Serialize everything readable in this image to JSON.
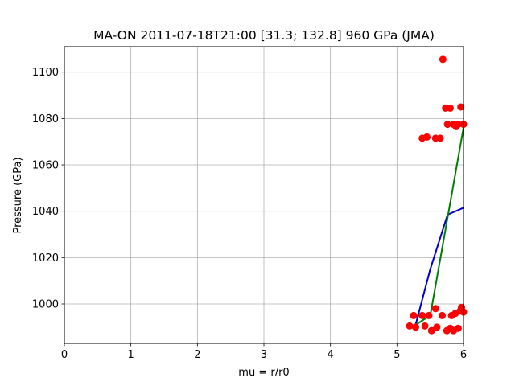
{
  "chart_data": {
    "type": "scatter",
    "title": "MA-ON 2011-07-18T21:00 [31.3; 132.8] 960 GPa (JMA)",
    "xlabel": "mu = r/r0",
    "ylabel": "Pressure (GPa)",
    "xlim": [
      0,
      6
    ],
    "ylim": [
      983,
      1111
    ],
    "xticks": [
      0,
      1,
      2,
      3,
      4,
      5,
      6
    ],
    "yticks": [
      1000,
      1020,
      1040,
      1060,
      1080,
      1100
    ],
    "grid": true,
    "colors": {
      "points": "#ff0000",
      "blue_line": "#0000cc",
      "green_line": "#008000"
    },
    "points": [
      {
        "x": 5.19,
        "y": 990.5
      },
      {
        "x": 5.25,
        "y": 995.0
      },
      {
        "x": 5.28,
        "y": 990.0
      },
      {
        "x": 5.38,
        "y": 995.0
      },
      {
        "x": 5.42,
        "y": 990.5
      },
      {
        "x": 5.48,
        "y": 995.0
      },
      {
        "x": 5.52,
        "y": 988.5
      },
      {
        "x": 5.58,
        "y": 998.0
      },
      {
        "x": 5.6,
        "y": 990.0
      },
      {
        "x": 5.68,
        "y": 995.0
      },
      {
        "x": 5.75,
        "y": 988.5
      },
      {
        "x": 5.8,
        "y": 989.5
      },
      {
        "x": 5.82,
        "y": 995.0
      },
      {
        "x": 5.85,
        "y": 988.5
      },
      {
        "x": 5.88,
        "y": 996.0
      },
      {
        "x": 5.92,
        "y": 989.5
      },
      {
        "x": 5.95,
        "y": 997.0
      },
      {
        "x": 5.97,
        "y": 998.5
      },
      {
        "x": 6.0,
        "y": 996.5
      },
      {
        "x": 5.38,
        "y": 1071.5
      },
      {
        "x": 5.45,
        "y": 1072.0
      },
      {
        "x": 5.58,
        "y": 1071.5
      },
      {
        "x": 5.65,
        "y": 1071.5
      },
      {
        "x": 5.73,
        "y": 1084.5
      },
      {
        "x": 5.76,
        "y": 1077.5
      },
      {
        "x": 5.8,
        "y": 1084.5
      },
      {
        "x": 5.85,
        "y": 1077.5
      },
      {
        "x": 5.89,
        "y": 1076.5
      },
      {
        "x": 5.92,
        "y": 1077.5
      },
      {
        "x": 5.96,
        "y": 1085.0
      },
      {
        "x": 6.0,
        "y": 1077.5
      },
      {
        "x": 5.69,
        "y": 1105.5
      }
    ],
    "series": [
      {
        "color": "#0000cc",
        "x": [
          5.28,
          5.5,
          5.76,
          6.0
        ],
        "y": [
          991.0,
          1015.0,
          1038.5,
          1041.5
        ]
      },
      {
        "color": "#008000",
        "x": [
          5.28,
          5.5,
          6.0
        ],
        "y": [
          991.0,
          995.0,
          1076.0
        ]
      }
    ]
  }
}
